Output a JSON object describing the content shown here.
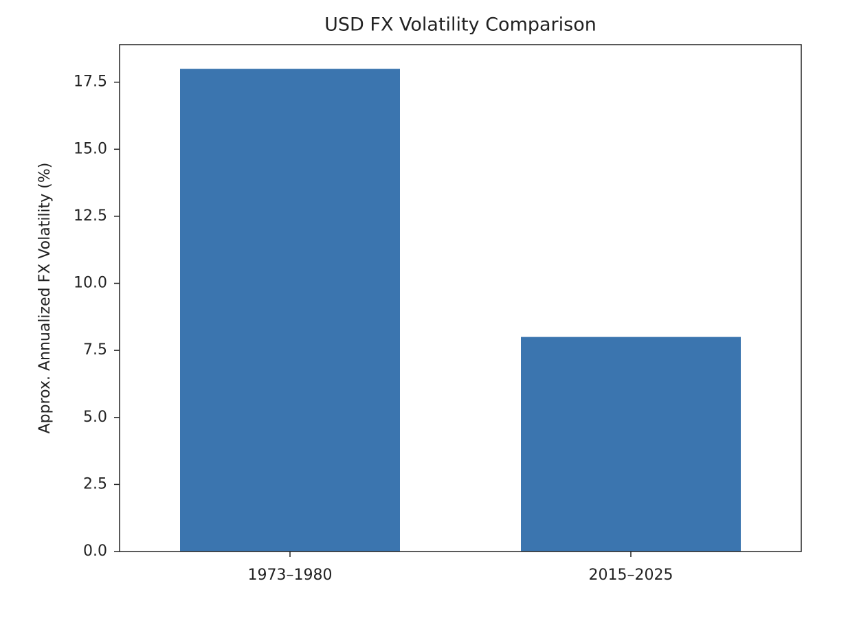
{
  "chart_data": {
    "type": "bar",
    "title": "USD FX Volatility Comparison",
    "y_label": "Approx. Annualized FX Volatility (%)",
    "categories": [
      "1973–1980",
      "2015–2025"
    ],
    "values": [
      18,
      8
    ],
    "color": "#3b75af",
    "ylim": [
      0,
      18.9
    ],
    "yticks": [
      {
        "value": 0,
        "label": "0.0"
      },
      2.5,
      {
        "value": 5,
        "label": "5.0"
      },
      7.5,
      {
        "value": 10,
        "label": "10.0"
      },
      12.5,
      {
        "value": 15,
        "label": "15.0"
      },
      17.5
    ],
    "grid": false
  }
}
